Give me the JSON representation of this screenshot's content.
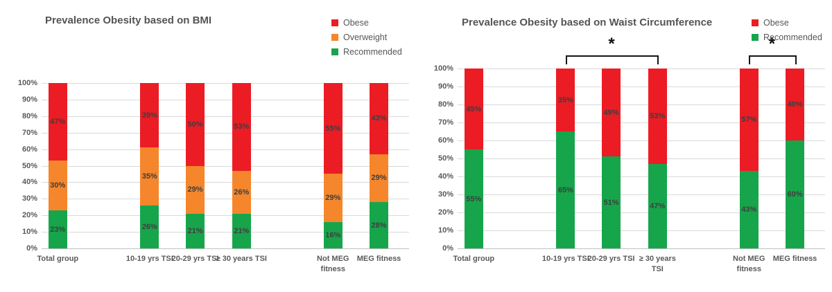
{
  "figure": {
    "background": "#FFFFFF",
    "title_color": "#545454",
    "axis_text_color": "#595959",
    "grid_color": "#D9D9D9",
    "axis_line_color": "#BFBFBF",
    "data_label_color": "#3E3E3E",
    "annotation_color": "#141414",
    "significance_marker": "*"
  },
  "chart_data": [
    {
      "type": "bar",
      "stacked": true,
      "title": "Prevalence Obesity based on BMI",
      "categories": [
        "Total group",
        "10-19 yrs TSI",
        "20-29 yrs TSI",
        "≥ 30 years TSI",
        "Not MEG fitness",
        "MEG fitness"
      ],
      "category_labels": [
        "Total group",
        "10-19 yrs TSI",
        "20-29 yrs TSI",
        "≥ 30 years TSI",
        "Not MEG\nfitness",
        "MEG fitness"
      ],
      "series": [
        {
          "name": "Recommended",
          "color": "#17A54B",
          "values": [
            23,
            26,
            21,
            21,
            16,
            28
          ]
        },
        {
          "name": "Overweight",
          "color": "#F5862B",
          "values": [
            30,
            35,
            29,
            26,
            29,
            29
          ]
        },
        {
          "name": "Obese",
          "color": "#EC1C24",
          "values": [
            47,
            39,
            50,
            53,
            55,
            43
          ]
        }
      ],
      "legend": {
        "position": "top-right",
        "entries": [
          "Obese",
          "Overweight",
          "Recommended"
        ]
      },
      "ylim": [
        0,
        100
      ],
      "ytick_step": 10,
      "ytick_suffix": "%",
      "data_label_suffix": "%",
      "grid": true,
      "annotations": []
    },
    {
      "type": "bar",
      "stacked": true,
      "title": "Prevalence Obesity based on Waist Circumference",
      "categories": [
        "Total group",
        "10-19 yrs TSI",
        "20-29 yrs TSI",
        "≥ 30 years TSI",
        "Not MEG fitness",
        "MEG fitness"
      ],
      "category_labels": [
        "Total group",
        "10-19 yrs TSI",
        "20-29 yrs TSI",
        "≥ 30 years\nTSI",
        "Not MEG\nfitness",
        "MEG fitness"
      ],
      "series": [
        {
          "name": "Recommended",
          "color": "#17A54B",
          "values": [
            55,
            65,
            51,
            47,
            43,
            60
          ]
        },
        {
          "name": "Obese",
          "color": "#EC1C24",
          "values": [
            45,
            35,
            49,
            53,
            57,
            40
          ]
        }
      ],
      "legend": {
        "position": "top-right",
        "entries": [
          "Obese",
          "Recommended"
        ]
      },
      "ylim": [
        0,
        100
      ],
      "ytick_step": 10,
      "ytick_suffix": "%",
      "data_label_suffix": "%",
      "grid": true,
      "annotations": [
        {
          "type": "significance-bracket",
          "from_category": "10-19 yrs TSI",
          "to_category": "≥ 30 years TSI",
          "label": "*"
        },
        {
          "type": "significance-bracket",
          "from_category": "Not MEG fitness",
          "to_category": "MEG fitness",
          "label": "*"
        }
      ]
    }
  ]
}
